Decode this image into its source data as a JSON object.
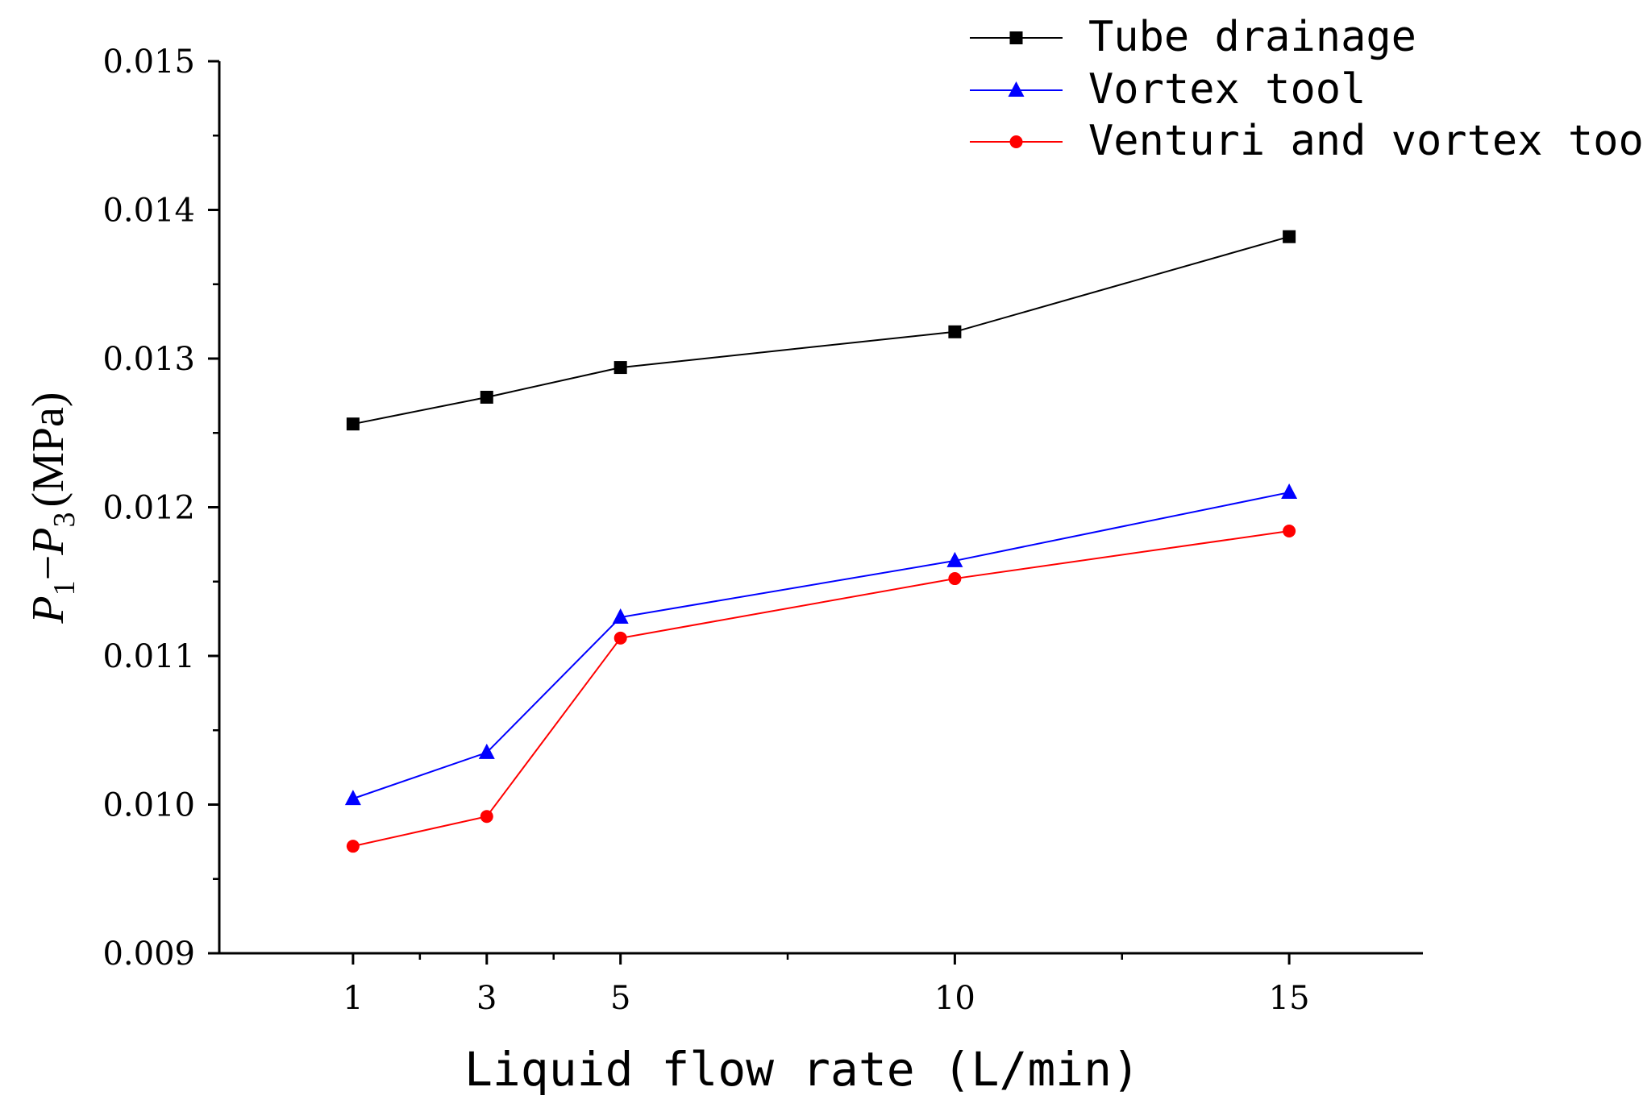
{
  "chart_data": {
    "type": "line",
    "title": "",
    "xlabel": "Liquid flow rate (L/min)",
    "ylabel": {
      "p1": "P",
      "sub1": "1",
      "dash": "−",
      "p3": "P",
      "sub3": "3",
      "unit": "(MPa)"
    },
    "x": [
      1,
      3,
      5,
      10,
      15
    ],
    "x_ticks": [
      "1",
      "3",
      "5",
      "10",
      "15"
    ],
    "y_ticks": [
      "0.009",
      "0.010",
      "0.011",
      "0.012",
      "0.013",
      "0.014",
      "0.015"
    ],
    "xlim": [
      -1,
      17
    ],
    "ylim": [
      0.009,
      0.015
    ],
    "grid": false,
    "legend_position": "top-right",
    "series": [
      {
        "name": "Tube drainage",
        "color": "#000000",
        "marker": "square",
        "values": [
          0.01256,
          0.01274,
          0.01294,
          0.01318,
          0.01382
        ]
      },
      {
        "name": "Vortex tool",
        "color": "#0000ff",
        "marker": "triangle",
        "values": [
          0.01004,
          0.01035,
          0.01126,
          0.01164,
          0.0121
        ]
      },
      {
        "name": "Venturi and vortex tool",
        "color": "#ff0000",
        "marker": "circle",
        "values": [
          0.00972,
          0.00992,
          0.01112,
          0.01152,
          0.01184
        ]
      }
    ]
  }
}
